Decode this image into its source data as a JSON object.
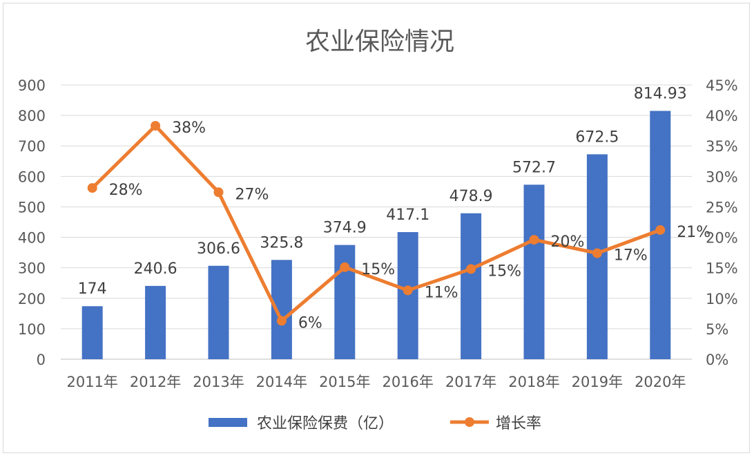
{
  "chart_data": {
    "type": "bar+line",
    "title": "农业保险情况",
    "categories": [
      "2011年",
      "2012年",
      "2013年",
      "2014年",
      "2015年",
      "2016年",
      "2017年",
      "2018年",
      "2019年",
      "2020年"
    ],
    "series": [
      {
        "name": "农业保险保费（亿）",
        "type": "bar",
        "axis": "left",
        "color": "#4472C4",
        "values": [
          174,
          240.6,
          306.6,
          325.8,
          374.9,
          417.1,
          478.9,
          572.7,
          672.5,
          814.93
        ],
        "labels": [
          "174",
          "240.6",
          "306.6",
          "325.8",
          "374.9",
          "417.1",
          "478.9",
          "572.7",
          "672.5",
          "814.93"
        ]
      },
      {
        "name": "增长率",
        "type": "line",
        "axis": "right",
        "color": "#ED7D31",
        "values": [
          28.1,
          38.3,
          27.4,
          6.3,
          15.1,
          11.3,
          14.8,
          19.6,
          17.4,
          21.2
        ],
        "labels": [
          "28%",
          "38%",
          "27%",
          "6%",
          "15%",
          "11%",
          "15%",
          "20%",
          "17%",
          "21%"
        ]
      }
    ],
    "y_left": {
      "ylim": [
        0,
        900
      ],
      "ticks": [
        "0",
        "100",
        "200",
        "300",
        "400",
        "500",
        "600",
        "700",
        "800",
        "900"
      ]
    },
    "y_right": {
      "ylim": [
        0,
        45
      ],
      "ticks": [
        "0%",
        "5%",
        "10%",
        "15%",
        "20%",
        "25%",
        "30%",
        "35%",
        "40%",
        "45%"
      ]
    },
    "grid": true,
    "legend": "bottom"
  }
}
